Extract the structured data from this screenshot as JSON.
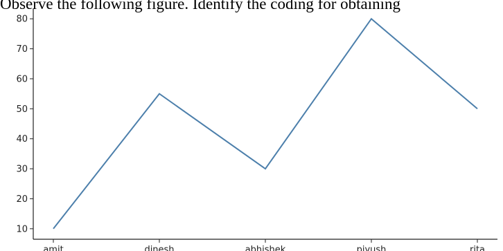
{
  "caption": "Observe the following figure. Identify the coding for obtaining",
  "chart_data": {
    "type": "line",
    "categories": [
      "amit",
      "dinesh",
      "abhishek",
      "piyush",
      "rita"
    ],
    "series": [
      {
        "values": [
          10,
          55,
          30,
          80,
          50
        ]
      }
    ],
    "yticks": [
      10,
      20,
      30,
      40,
      50,
      60,
      70,
      80
    ],
    "ylim": [
      6.5,
      83.5
    ],
    "title": "",
    "xlabel": "",
    "ylabel": "",
    "grid": false,
    "line_color": "#4c7fab"
  }
}
